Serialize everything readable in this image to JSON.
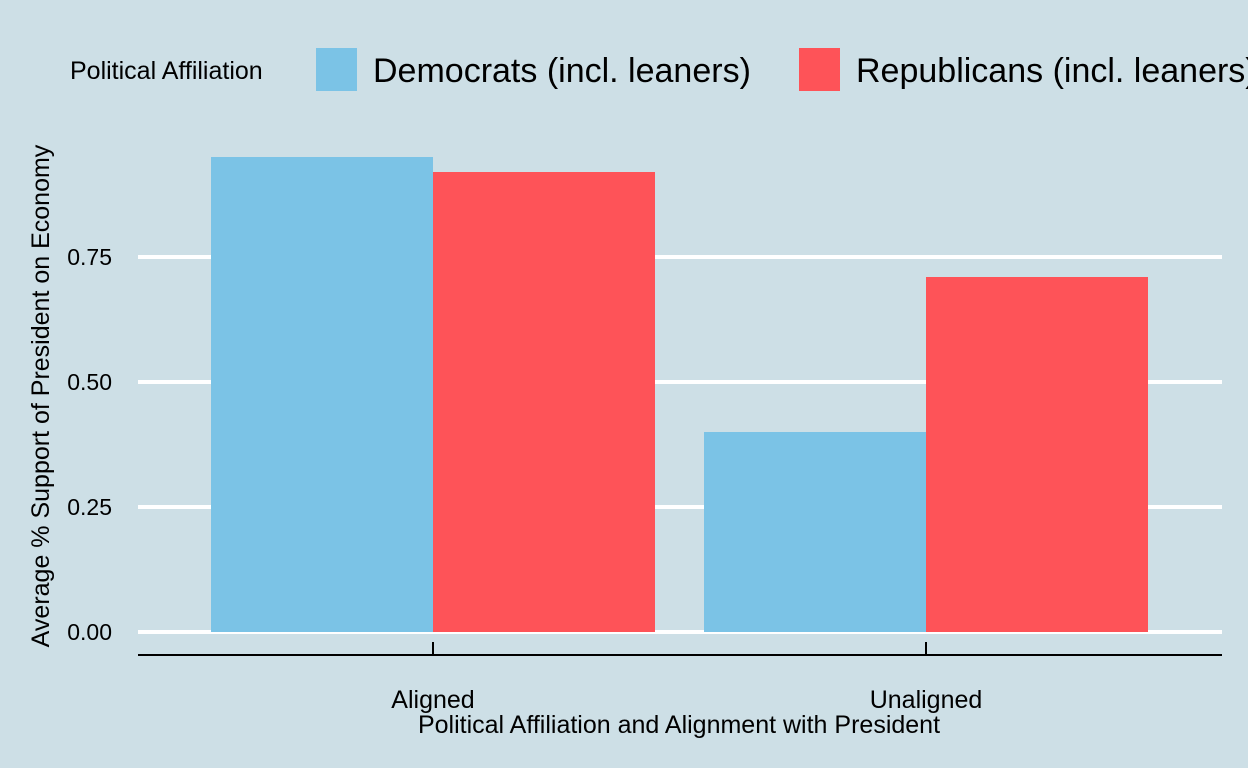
{
  "chart_data": {
    "type": "bar",
    "title": "",
    "xlabel": "Political Affiliation and Alignment with President",
    "ylabel": "Average % Support of President on Economy",
    "categories": [
      "Aligned",
      "Unaligned"
    ],
    "series": [
      {
        "name": "Democrats (incl. leaners)",
        "color": "#7bc3e6",
        "values": [
          0.95,
          0.4
        ]
      },
      {
        "name": "Republicans (incl. leaners)",
        "color": "#fe5358",
        "values": [
          0.92,
          0.71
        ]
      }
    ],
    "ylim": [
      0,
      0.95
    ],
    "yticks": [
      0.0,
      0.25,
      0.5,
      0.75
    ],
    "ytick_labels": [
      "0.00",
      "0.25",
      "0.50",
      "0.75"
    ],
    "grid": "horizontal",
    "legend": {
      "title": "Political Affiliation",
      "placement": "top",
      "items": [
        "Democrats (incl. leaners)",
        "Republicans (incl. leaners)"
      ]
    },
    "background_color": "#cddfe6"
  }
}
